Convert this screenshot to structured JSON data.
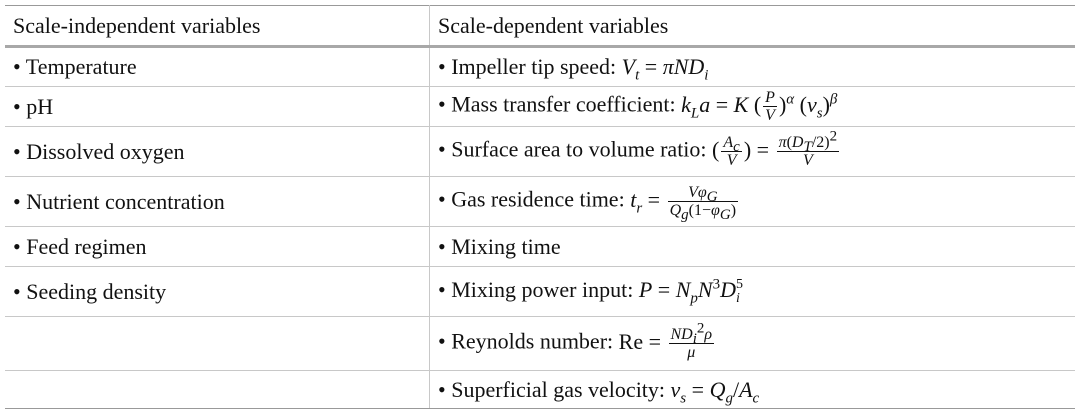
{
  "table": {
    "header": [
      "Scale-independent variables",
      "Scale-dependent variables"
    ],
    "rows": [
      {
        "left": "• Temperature",
        "right": {
          "label": "• Impeller tip speed:",
          "formula": [
            {
              "it": "V"
            },
            {
              "sub": [
                {
                  "it": "t"
                }
              ]
            },
            " = ",
            {
              "it": "πND"
            },
            {
              "sub": [
                {
                  "it": "i"
                }
              ]
            }
          ]
        }
      },
      {
        "left": "• pH",
        "right": {
          "label": "• Mass transfer coefficient:",
          "formula": [
            {
              "it": "k"
            },
            {
              "sub": [
                {
                  "it": "L"
                }
              ]
            },
            {
              "it": "a"
            },
            " = ",
            {
              "it": "K"
            },
            " (",
            {
              "frac": [
                [
                  {
                    "it": "P"
                  }
                ],
                [
                  {
                    "it": "V"
                  }
                ]
              ]
            },
            ")",
            {
              "sup": [
                {
                  "it": "α"
                }
              ]
            },
            " (",
            {
              "it": "v"
            },
            {
              "sub": [
                {
                  "it": "s"
                }
              ]
            },
            ")",
            {
              "sup": [
                {
                  "it": "β"
                }
              ]
            }
          ]
        }
      },
      {
        "left": "• Dissolved oxygen",
        "right": {
          "label": "• Surface area to volume ratio:",
          "formula": [
            " (",
            {
              "frac": [
                [
                  {
                    "it": "A"
                  },
                  {
                    "sub": [
                      {
                        "it": "c"
                      }
                    ]
                  }
                ],
                [
                  {
                    "it": "V"
                  }
                ]
              ]
            },
            ")",
            " = ",
            {
              "frac": [
                [
                  {
                    "it": "π"
                  },
                  "(",
                  {
                    "it": "D"
                  },
                  {
                    "sub": [
                      {
                        "it": "T"
                      }
                    ]
                  },
                  "/2)",
                  {
                    "sup": [
                      "2"
                    ]
                  }
                ],
                [
                  {
                    "it": "V"
                  }
                ]
              ]
            }
          ]
        }
      },
      {
        "left": "• Nutrient concentration",
        "right": {
          "label": "• Gas residence time:",
          "formula": [
            {
              "it": "t"
            },
            {
              "sub": [
                {
                  "it": "r"
                }
              ]
            },
            " = ",
            {
              "frac": [
                [
                  {
                    "it": "Vφ"
                  },
                  {
                    "sub": [
                      {
                        "it": "G"
                      }
                    ]
                  }
                ],
                [
                  {
                    "it": "Q"
                  },
                  {
                    "sub": [
                      {
                        "it": "g"
                      }
                    ]
                  },
                  "(1−",
                  {
                    "it": "φ"
                  },
                  {
                    "sub": [
                      {
                        "it": "G"
                      }
                    ]
                  },
                  ")"
                ]
              ]
            }
          ]
        }
      },
      {
        "left": "• Feed regimen",
        "right": {
          "label": "• Mixing time"
        }
      },
      {
        "left": "• Seeding density",
        "right": {
          "label": "• Mixing power input:",
          "formula": [
            {
              "it": "P"
            },
            " = ",
            {
              "it": "N"
            },
            {
              "sub": [
                {
                  "it": "p"
                }
              ]
            },
            {
              "it": "N"
            },
            {
              "sup": [
                "3"
              ]
            },
            {
              "it": "D"
            },
            {
              "subsup": [
                [
                  {
                    "it": "i"
                  }
                ],
                [
                  "5"
                ]
              ]
            }
          ]
        }
      },
      {
        "left": null,
        "right": {
          "label": "• Reynolds number:",
          "formula": [
            "Re = ",
            {
              "frac": [
                [
                  {
                    "it": "ND"
                  },
                  {
                    "sub": [
                      {
                        "it": "i"
                      }
                    ]
                  },
                  {
                    "sup": [
                      "2"
                    ]
                  },
                  {
                    "it": "ρ"
                  }
                ],
                [
                  {
                    "it": "μ"
                  }
                ]
              ]
            }
          ]
        }
      },
      {
        "left": null,
        "right": {
          "label": "• Superficial gas velocity:",
          "formula": [
            {
              "it": "v"
            },
            {
              "sub": [
                {
                  "it": "s"
                }
              ]
            },
            " = ",
            {
              "it": "Q"
            },
            {
              "sub": [
                {
                  "it": "g"
                }
              ]
            },
            "/",
            {
              "it": "A"
            },
            {
              "sub": [
                {
                  "it": "c"
                }
              ]
            }
          ]
        }
      }
    ]
  }
}
